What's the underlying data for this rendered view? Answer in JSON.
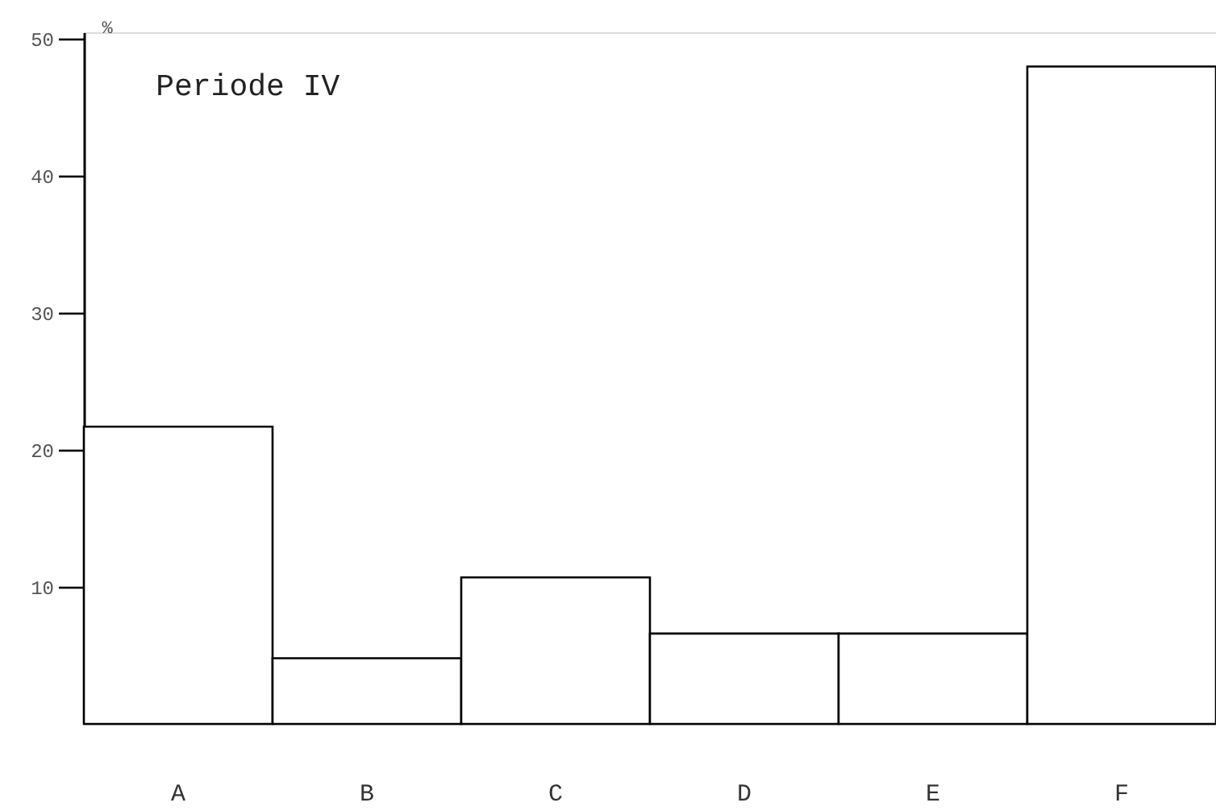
{
  "chart_data": {
    "type": "bar",
    "title": "Periode IV",
    "ylabel": "%",
    "categories": [
      "A",
      "B",
      "C",
      "D",
      "E",
      "F"
    ],
    "values": [
      21.7,
      4.8,
      10.7,
      6.6,
      6.6,
      48
    ],
    "color": "#ffffff",
    "ylim": [
      0,
      50.5
    ],
    "yticks": [
      10,
      20,
      30,
      40,
      50
    ],
    "grid": false
  }
}
